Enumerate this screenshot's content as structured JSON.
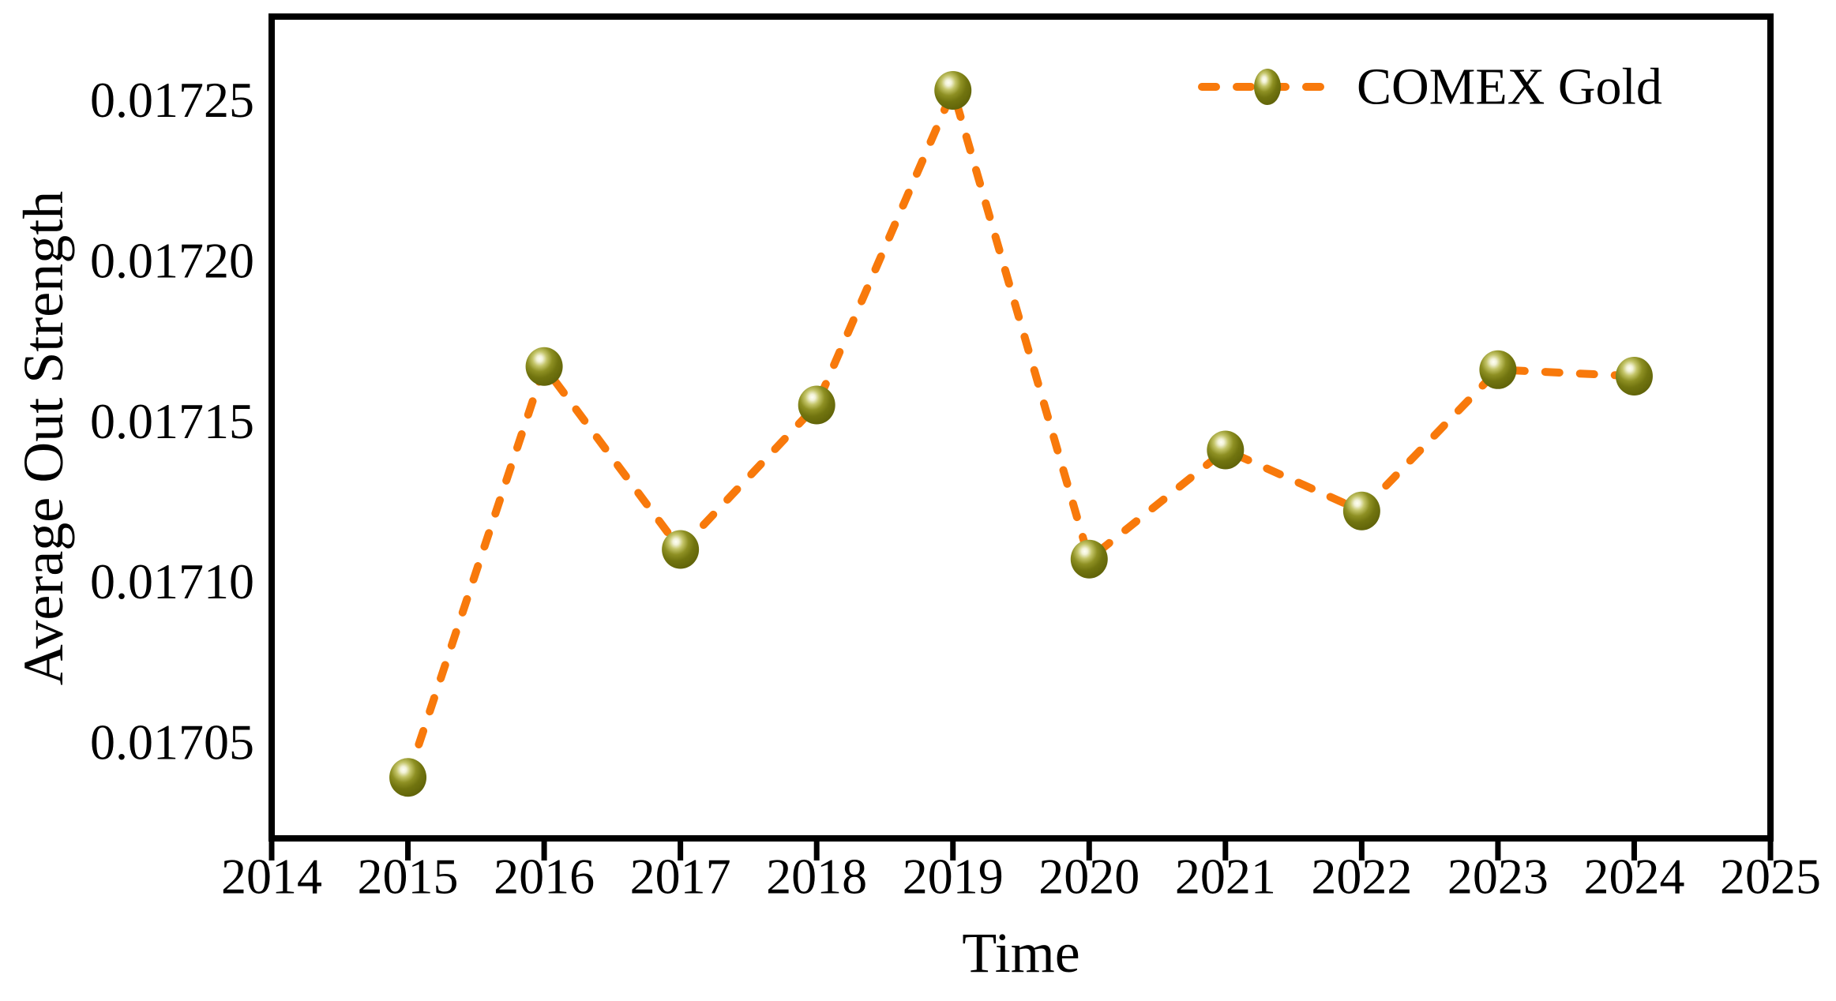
{
  "chart_data": {
    "type": "line",
    "title": "",
    "xlabel": "Time",
    "ylabel": "Average Out Strength",
    "x": [
      2015,
      2016,
      2017,
      2018,
      2019,
      2020,
      2021,
      2022,
      2023,
      2024
    ],
    "series": [
      {
        "name": "COMEX Gold",
        "values": [
          0.017039,
          0.017167,
          0.01711,
          0.017155,
          0.017253,
          0.017107,
          0.017141,
          0.017122,
          0.017166,
          0.017164
        ]
      }
    ],
    "x_ticks": [
      2014,
      2015,
      2016,
      2017,
      2018,
      2019,
      2020,
      2021,
      2022,
      2023,
      2024,
      2025
    ],
    "y_ticks": [
      {
        "value": 0.01705,
        "label": "0.01705"
      },
      {
        "value": 0.0171,
        "label": "0.01710"
      },
      {
        "value": 0.01715,
        "label": "0.01715"
      },
      {
        "value": 0.0172,
        "label": "0.01720"
      },
      {
        "value": 0.01725,
        "label": "0.01725"
      }
    ],
    "xlim": [
      2014,
      2025
    ],
    "ylim": [
      0.01702,
      0.017276
    ],
    "grid": false,
    "legend": {
      "label": "COMEX Gold",
      "position": "upper-right"
    },
    "line_color": "#F8790B",
    "line_style": "dashed",
    "marker": "sphere",
    "marker_body_color": "#6F720E",
    "marker_highlight_color": "#FDFDF2",
    "marker_dark_edge_color": "#5A5D07",
    "axis_color": "#000000"
  }
}
